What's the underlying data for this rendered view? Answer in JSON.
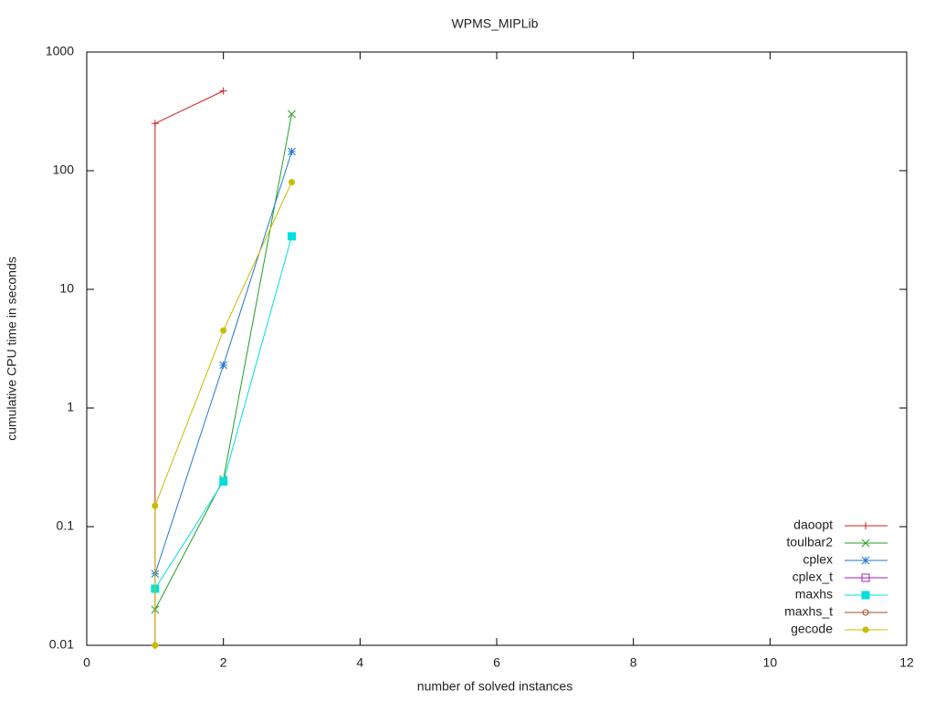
{
  "chart_data": {
    "type": "line",
    "title": "WPMS_MIPLib",
    "xlabel": "number of solved instances",
    "ylabel": "cumulative CPU time in seconds",
    "log_y": true,
    "legend": "lower right",
    "xlim": [
      0,
      12
    ],
    "xticks": [
      0,
      2,
      4,
      6,
      8,
      10,
      12
    ],
    "ylim": [
      0.01,
      1000
    ],
    "yticks": [
      0.01,
      0.1,
      1,
      10,
      100,
      1000
    ],
    "series": [
      {
        "name": "daoopt",
        "color": "#cc2020",
        "marker": "plus",
        "x": [
          1,
          1,
          2
        ],
        "values": [
          0.01,
          250,
          470
        ]
      },
      {
        "name": "toulbar2",
        "color": "#20a020",
        "marker": "cross",
        "x": [
          1,
          2,
          3
        ],
        "values": [
          0.02,
          0.25,
          300
        ]
      },
      {
        "name": "cplex",
        "color": "#2277cc",
        "marker": "star",
        "x": [
          1,
          2,
          3
        ],
        "values": [
          0.04,
          2.3,
          145
        ]
      },
      {
        "name": "cplex_t",
        "color": "#a020c0",
        "marker": "square-open",
        "x": [],
        "values": []
      },
      {
        "name": "maxhs",
        "color": "#00dede",
        "marker": "square",
        "x": [
          1,
          2,
          3
        ],
        "values": [
          0.03,
          0.24,
          28
        ]
      },
      {
        "name": "maxhs_t",
        "color": "#a05020",
        "marker": "circle-open",
        "x": [],
        "values": []
      },
      {
        "name": "gecode",
        "color": "#c8bc00",
        "marker": "circle",
        "x": [
          1,
          1,
          2,
          3
        ],
        "values": [
          0.01,
          0.15,
          4.5,
          80
        ]
      }
    ]
  }
}
